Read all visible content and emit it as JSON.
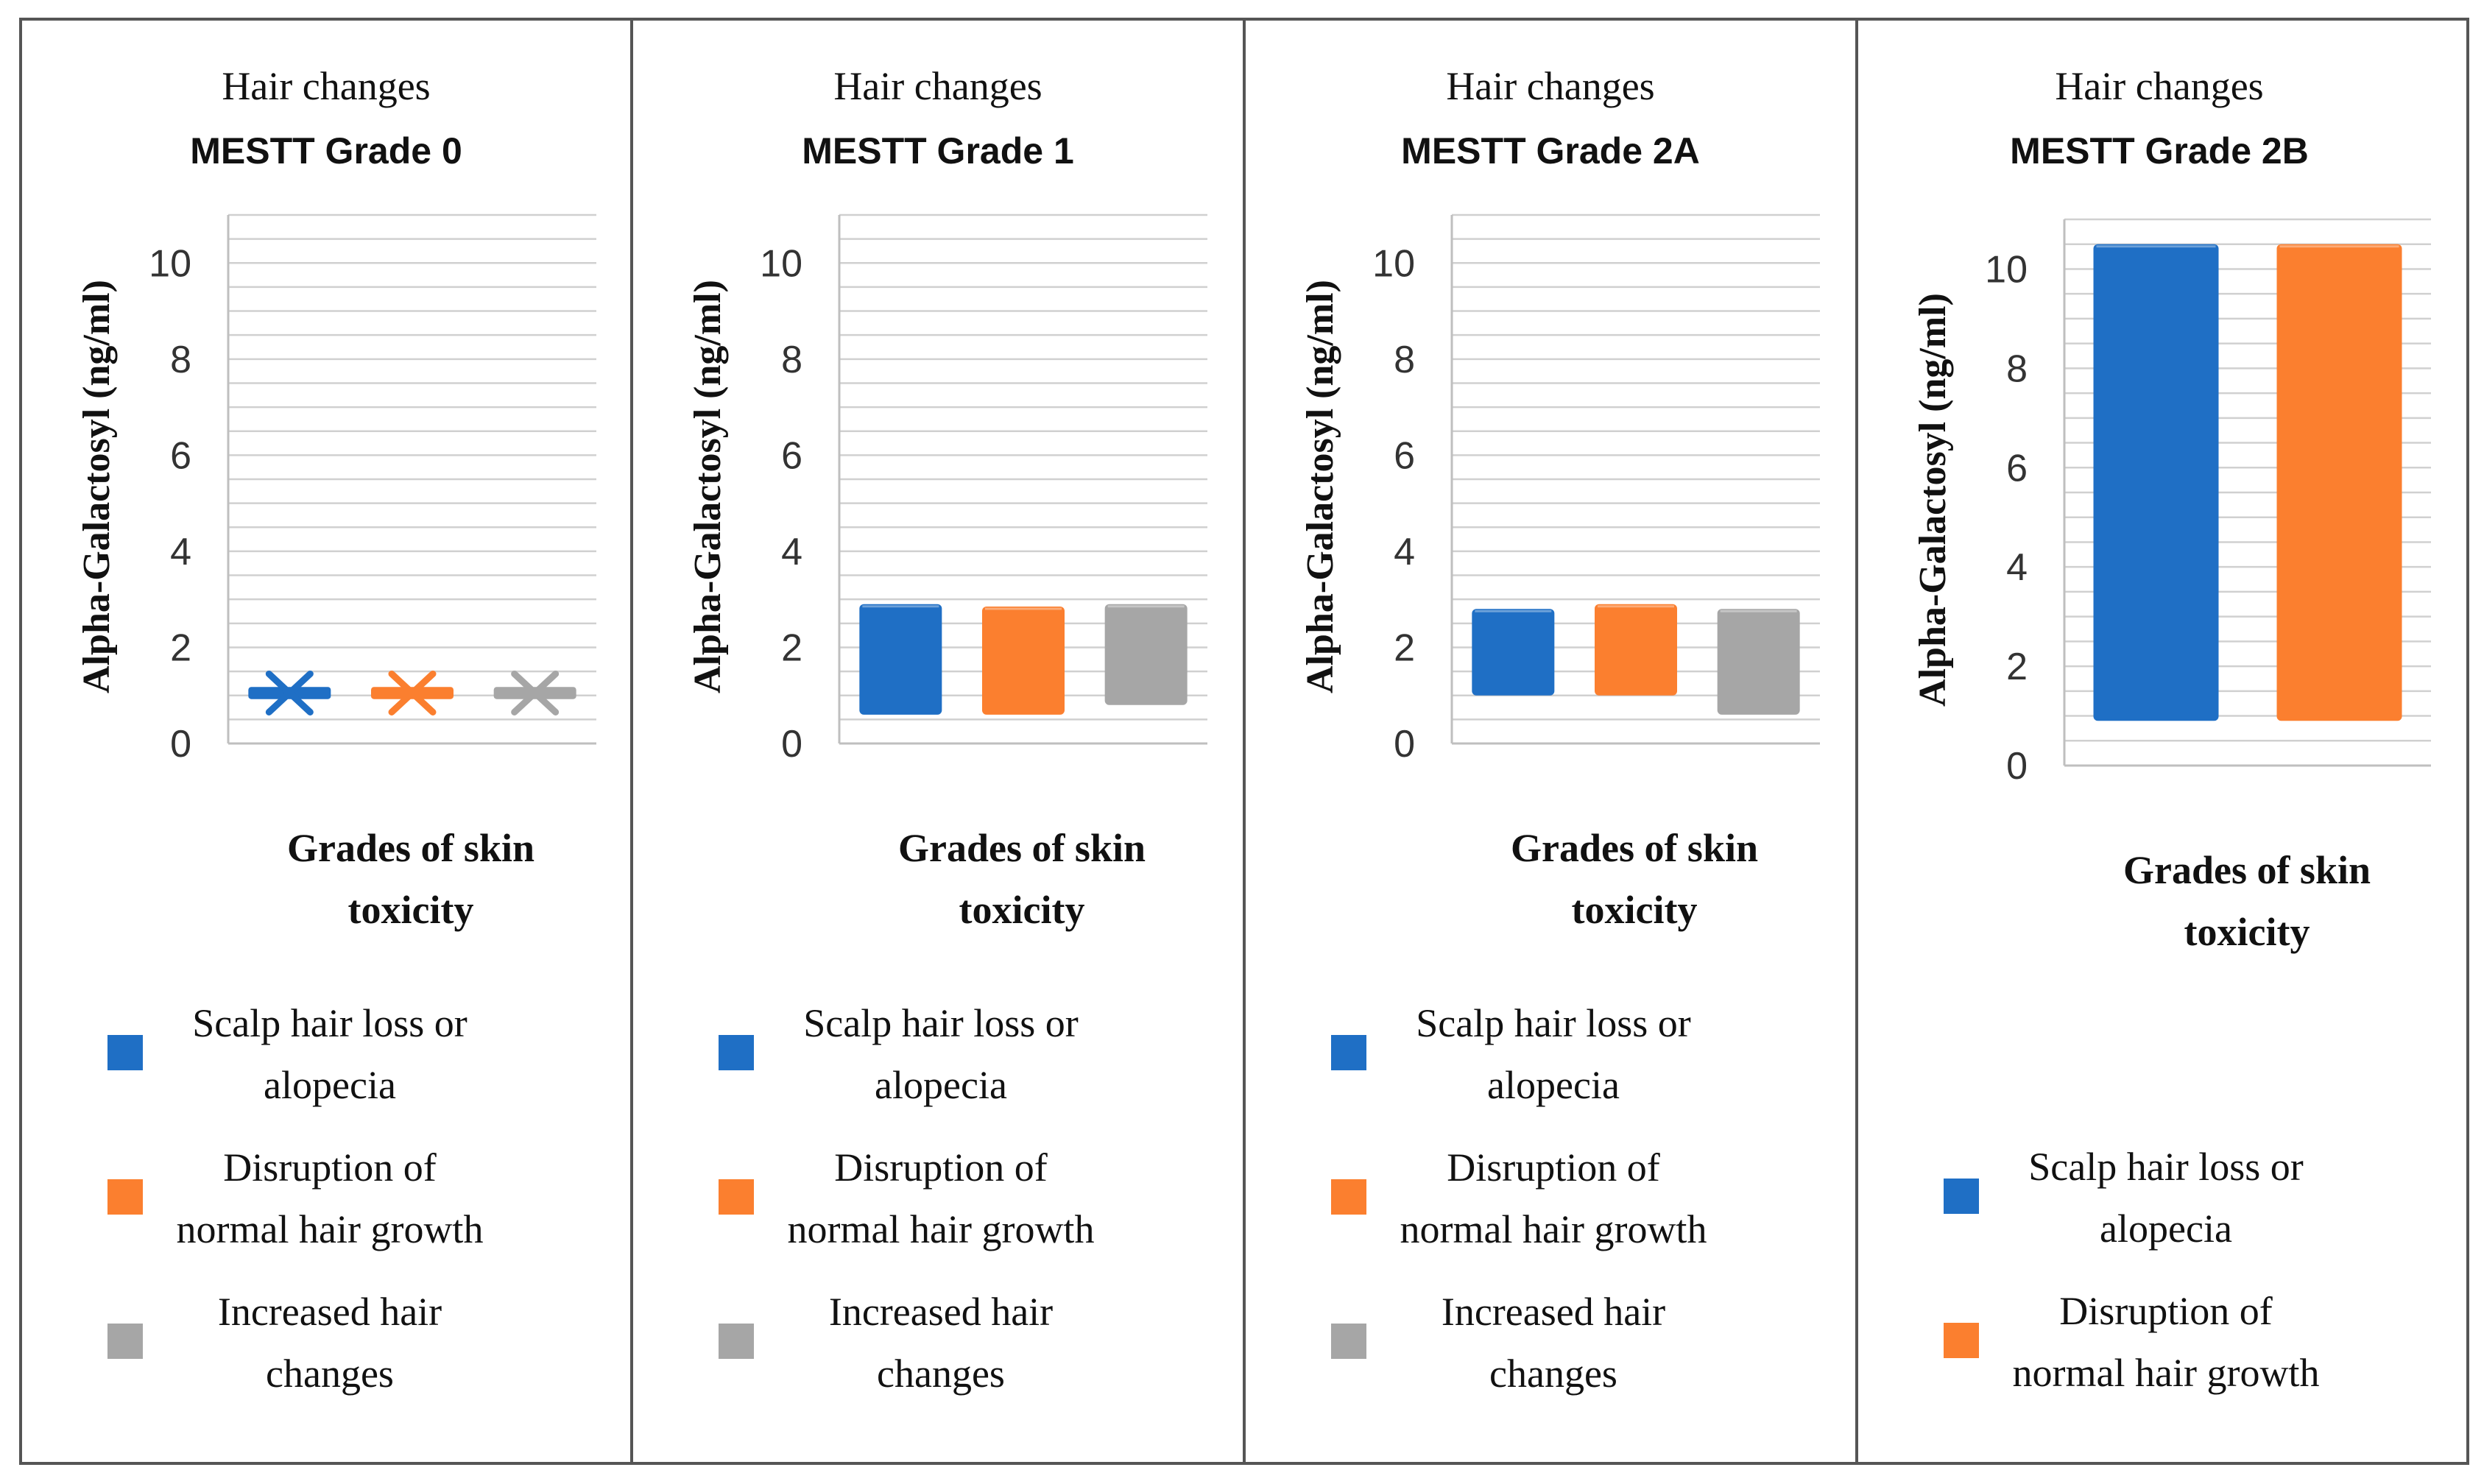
{
  "figure": {
    "panel_title": "Hair changes",
    "y_axis_label": "Alpha-Galactosyl (ng/ml)",
    "x_axis_label_lines": [
      "Grades of skin",
      "toxicity"
    ],
    "series_names": {
      "s1": [
        "Scalp hair loss or",
        "alopecia"
      ],
      "s2": [
        "Disruption of",
        "normal hair growth"
      ],
      "s3": [
        "Increased hair",
        "changes"
      ]
    }
  },
  "colors": {
    "s1": "#1f6fc5",
    "s2": "#fb7f2f",
    "s3": "#a6a6a6",
    "grid": "#d0d0d0",
    "axis": "#bfbfbf",
    "border": "#555555"
  },
  "chart_data": [
    {
      "type": "bar",
      "title": "Hair changes",
      "subtitle": "MESTT Grade 0",
      "ylabel": "Alpha-Galactosyl (ng/ml)",
      "xlabel": "Grades of skin toxicity",
      "ylim": [
        0,
        11
      ],
      "yticks": [
        0,
        2,
        4,
        6,
        8,
        10
      ],
      "series": [
        {
          "name": "Scalp hair loss or alopecia",
          "key": "s1",
          "low": 1.0,
          "high": 1.1
        },
        {
          "name": "Disruption of normal hair growth",
          "key": "s2",
          "low": 1.0,
          "high": 1.1
        },
        {
          "name": "Increased hair changes",
          "key": "s3",
          "low": 1.0,
          "high": 1.1
        }
      ]
    },
    {
      "type": "bar",
      "title": "Hair changes",
      "subtitle": "MESTT Grade 1",
      "ylabel": "Alpha-Galactosyl (ng/ml)",
      "xlabel": "Grades of skin toxicity",
      "ylim": [
        0,
        11
      ],
      "yticks": [
        0,
        2,
        4,
        6,
        8,
        10
      ],
      "series": [
        {
          "name": "Scalp hair loss or alopecia",
          "key": "s1",
          "low": 0.6,
          "high": 2.9
        },
        {
          "name": "Disruption of normal hair growth",
          "key": "s2",
          "low": 0.6,
          "high": 2.85
        },
        {
          "name": "Increased hair changes",
          "key": "s3",
          "low": 0.8,
          "high": 2.9
        }
      ]
    },
    {
      "type": "bar",
      "title": "Hair changes",
      "subtitle": "MESTT Grade 2A",
      "ylabel": "Alpha-Galactosyl (ng/ml)",
      "xlabel": "Grades of skin toxicity",
      "ylim": [
        0,
        11
      ],
      "yticks": [
        0,
        2,
        4,
        6,
        8,
        10
      ],
      "series": [
        {
          "name": "Scalp hair loss or alopecia",
          "key": "s1",
          "low": 1.0,
          "high": 2.8
        },
        {
          "name": "Disruption of normal hair growth",
          "key": "s2",
          "low": 1.0,
          "high": 2.9
        },
        {
          "name": "Increased hair changes",
          "key": "s3",
          "low": 0.6,
          "high": 2.8
        }
      ]
    },
    {
      "type": "bar",
      "title": "Hair changes",
      "subtitle": "MESTT Grade 2B",
      "ylabel": "Alpha-Galactosyl (ng/ml)",
      "xlabel": "Grades of skin toxicity",
      "ylim": [
        0,
        11
      ],
      "yticks": [
        0,
        2,
        4,
        6,
        8,
        10
      ],
      "series": [
        {
          "name": "Scalp hair loss or alopecia",
          "key": "s1",
          "low": 0.9,
          "high": 10.5
        },
        {
          "name": "Disruption of normal hair growth",
          "key": "s2",
          "low": 0.9,
          "high": 10.5
        }
      ]
    }
  ]
}
